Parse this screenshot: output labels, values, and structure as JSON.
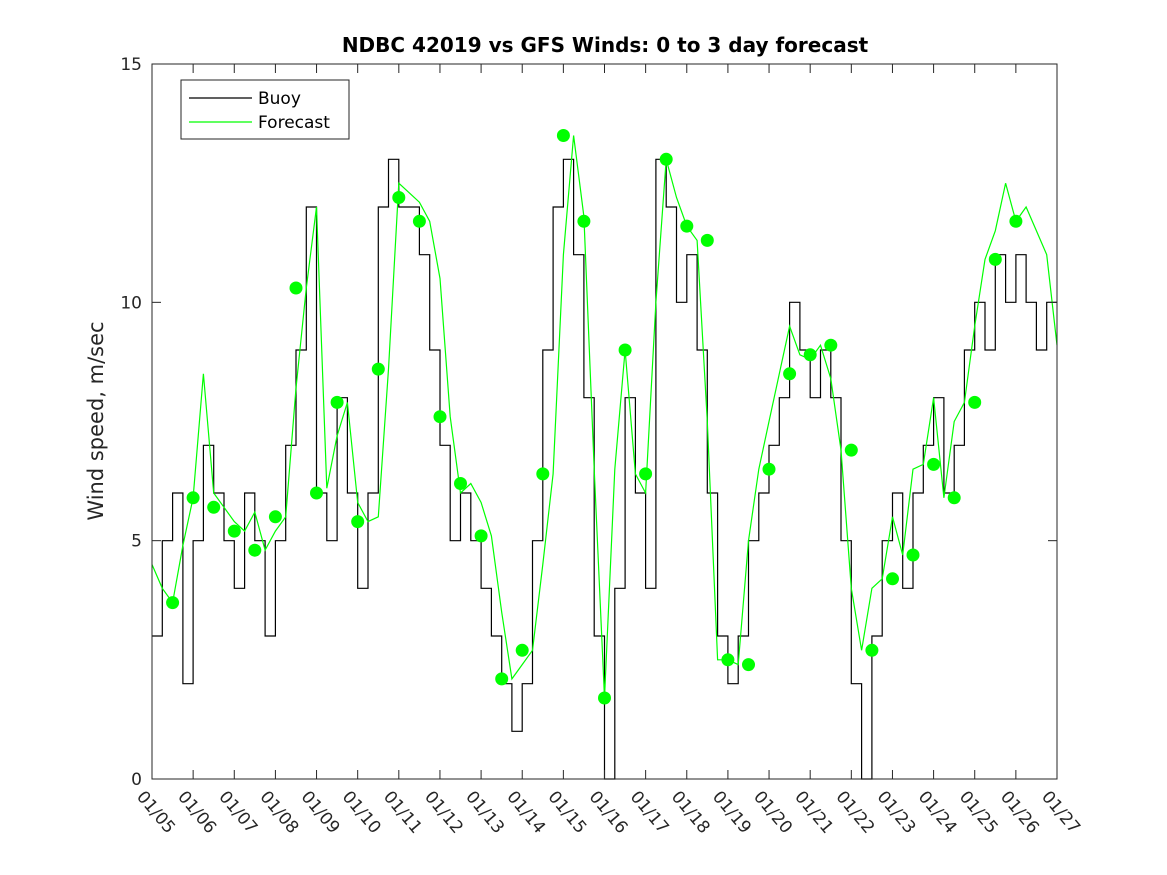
{
  "chart_data": {
    "type": "line",
    "title": "NDBC 42019 vs GFS Winds: 0 to 3 day forecast",
    "xlabel": "",
    "ylabel": "Wind speed, m/sec",
    "xlim": [
      "01/05",
      "01/27"
    ],
    "ylim": [
      0,
      15
    ],
    "x_tick_labels": [
      "01/05",
      "01/06",
      "01/07",
      "01/08",
      "01/09",
      "01/10",
      "01/11",
      "01/12",
      "01/13",
      "01/14",
      "01/15",
      "01/16",
      "01/17",
      "01/18",
      "01/19",
      "01/20",
      "01/21",
      "01/22",
      "01/23",
      "01/24",
      "01/25",
      "01/26",
      "01/27"
    ],
    "y_ticks": [
      0,
      5,
      10,
      15
    ],
    "legend": {
      "position": "top-left",
      "entries": [
        "Buoy",
        "Forecast"
      ]
    },
    "grid": false,
    "colors": {
      "buoy": "#000000",
      "forecast": "#00ff00"
    },
    "series": [
      {
        "name": "Buoy",
        "style": "step",
        "x": [
          "01/05 00:00",
          "01/05 06:00",
          "01/05 12:00",
          "01/05 18:00",
          "01/06 00:00",
          "01/06 06:00",
          "01/06 12:00",
          "01/06 18:00",
          "01/07 00:00",
          "01/07 06:00",
          "01/07 12:00",
          "01/07 18:00",
          "01/08 00:00",
          "01/08 06:00",
          "01/08 12:00",
          "01/08 18:00",
          "01/09 00:00",
          "01/09 06:00",
          "01/09 12:00",
          "01/09 18:00",
          "01/10 00:00",
          "01/10 06:00",
          "01/10 12:00",
          "01/10 18:00",
          "01/11 00:00",
          "01/11 06:00",
          "01/11 12:00",
          "01/11 18:00",
          "01/12 00:00",
          "01/12 06:00",
          "01/12 12:00",
          "01/12 18:00",
          "01/13 00:00",
          "01/13 06:00",
          "01/13 12:00",
          "01/13 18:00",
          "01/14 00:00",
          "01/14 06:00",
          "01/14 12:00",
          "01/14 18:00",
          "01/15 00:00",
          "01/15 06:00",
          "01/15 12:00",
          "01/15 18:00",
          "01/16 00:00",
          "01/16 06:00",
          "01/16 12:00",
          "01/16 18:00",
          "01/17 00:00",
          "01/17 06:00",
          "01/17 12:00",
          "01/17 18:00",
          "01/18 00:00",
          "01/18 06:00",
          "01/18 12:00",
          "01/18 18:00",
          "01/19 00:00",
          "01/19 06:00",
          "01/19 12:00",
          "01/19 18:00",
          "01/20 00:00",
          "01/20 06:00",
          "01/20 12:00",
          "01/20 18:00",
          "01/21 00:00",
          "01/21 06:00",
          "01/21 12:00",
          "01/21 18:00",
          "01/22 00:00",
          "01/22 06:00",
          "01/22 12:00",
          "01/22 18:00",
          "01/23 00:00",
          "01/23 06:00",
          "01/23 12:00",
          "01/23 18:00",
          "01/24 00:00",
          "01/24 06:00",
          "01/24 12:00",
          "01/24 18:00",
          "01/25 00:00",
          "01/25 06:00",
          "01/25 12:00",
          "01/25 18:00",
          "01/26 00:00",
          "01/26 06:00",
          "01/26 12:00",
          "01/26 18:00",
          "01/27 00:00"
        ],
        "y": [
          3,
          5,
          6,
          2,
          5,
          7,
          6,
          5,
          4,
          6,
          5,
          3,
          5,
          7,
          9,
          12,
          6,
          5,
          8,
          6,
          4,
          6,
          12,
          13,
          12,
          12,
          11,
          9,
          7,
          5,
          6,
          5,
          4,
          3,
          2,
          1,
          2,
          5,
          9,
          12,
          13,
          11,
          8,
          3,
          0,
          4,
          8,
          6,
          4,
          13,
          12,
          10,
          11,
          9,
          6,
          3,
          2,
          3,
          5,
          6,
          7,
          8,
          10,
          9,
          8,
          9,
          8,
          5,
          2,
          0,
          3,
          5,
          6,
          4,
          6,
          7,
          8,
          6,
          7,
          9,
          10,
          9,
          11,
          10,
          11,
          10,
          9,
          10,
          10
        ]
      },
      {
        "name": "Forecast",
        "style": "line",
        "x": [
          "01/05 00:00",
          "01/05 06:00",
          "01/05 12:00",
          "01/05 18:00",
          "01/06 00:00",
          "01/06 06:00",
          "01/06 12:00",
          "01/06 18:00",
          "01/07 00:00",
          "01/07 06:00",
          "01/07 12:00",
          "01/07 18:00",
          "01/08 00:00",
          "01/08 06:00",
          "01/08 12:00",
          "01/08 18:00",
          "01/09 00:00",
          "01/09 06:00",
          "01/09 12:00",
          "01/09 18:00",
          "01/10 00:00",
          "01/10 06:00",
          "01/10 12:00",
          "01/10 18:00",
          "01/11 00:00",
          "01/11 06:00",
          "01/11 12:00",
          "01/11 18:00",
          "01/12 00:00",
          "01/12 06:00",
          "01/12 12:00",
          "01/12 18:00",
          "01/13 00:00",
          "01/13 06:00",
          "01/13 12:00",
          "01/13 18:00",
          "01/14 00:00",
          "01/14 06:00",
          "01/14 12:00",
          "01/14 18:00",
          "01/15 00:00",
          "01/15 06:00",
          "01/15 12:00",
          "01/15 18:00",
          "01/16 00:00",
          "01/16 06:00",
          "01/16 12:00",
          "01/16 18:00",
          "01/17 00:00",
          "01/17 06:00",
          "01/17 12:00",
          "01/17 18:00",
          "01/18 00:00",
          "01/18 06:00",
          "01/18 12:00",
          "01/18 18:00",
          "01/19 00:00",
          "01/19 06:00",
          "01/19 12:00",
          "01/19 18:00",
          "01/20 00:00",
          "01/20 06:00",
          "01/20 12:00",
          "01/20 18:00",
          "01/21 00:00",
          "01/21 06:00",
          "01/21 12:00",
          "01/21 18:00",
          "01/22 00:00",
          "01/22 06:00",
          "01/22 12:00",
          "01/22 18:00",
          "01/23 00:00",
          "01/23 06:00",
          "01/23 12:00",
          "01/23 18:00",
          "01/24 00:00",
          "01/24 06:00",
          "01/24 12:00",
          "01/24 18:00",
          "01/25 00:00",
          "01/25 06:00",
          "01/25 12:00",
          "01/25 18:00",
          "01/26 00:00",
          "01/26 06:00",
          "01/26 12:00",
          "01/26 18:00",
          "01/27 00:00"
        ],
        "y": [
          4.5,
          4.0,
          3.7,
          4.9,
          5.9,
          8.5,
          6.0,
          5.7,
          5.4,
          5.2,
          5.6,
          4.8,
          5.2,
          5.5,
          8.2,
          10.3,
          12.0,
          6.1,
          7.2,
          7.9,
          5.8,
          5.4,
          5.5,
          8.6,
          12.5,
          12.3,
          12.1,
          11.7,
          10.5,
          7.6,
          6.0,
          6.2,
          5.8,
          5.1,
          3.5,
          2.1,
          2.4,
          2.7,
          4.5,
          6.4,
          11.0,
          13.5,
          11.8,
          6.5,
          1.7,
          6.5,
          9.0,
          6.4,
          6.0,
          10.0,
          13.0,
          12.2,
          11.6,
          11.3,
          7.5,
          2.5,
          2.5,
          2.4,
          5.0,
          6.5,
          7.5,
          8.5,
          9.5,
          8.9,
          8.8,
          9.1,
          8.4,
          6.9,
          4.0,
          2.7,
          4.0,
          4.2,
          5.5,
          4.7,
          6.5,
          6.6,
          8.0,
          5.9,
          7.5,
          7.9,
          9.5,
          10.9,
          11.5,
          12.5,
          11.7,
          12.0,
          11.5,
          11.0,
          9.1
        ]
      },
      {
        "name": "Forecast markers",
        "style": "markers",
        "x": [
          "01/05 12:00",
          "01/06 00:00",
          "01/06 12:00",
          "01/07 00:00",
          "01/07 12:00",
          "01/08 00:00",
          "01/08 12:00",
          "01/09 00:00",
          "01/09 12:00",
          "01/10 00:00",
          "01/10 12:00",
          "01/11 00:00",
          "01/11 12:00",
          "01/12 00:00",
          "01/12 12:00",
          "01/13 00:00",
          "01/13 12:00",
          "01/14 00:00",
          "01/14 12:00",
          "01/15 00:00",
          "01/15 12:00",
          "01/16 00:00",
          "01/16 12:00",
          "01/17 00:00",
          "01/17 12:00",
          "01/18 00:00",
          "01/18 12:00",
          "01/19 00:00",
          "01/19 12:00",
          "01/20 00:00",
          "01/20 12:00",
          "01/21 00:00",
          "01/21 12:00",
          "01/22 00:00",
          "01/22 12:00",
          "01/23 00:00",
          "01/23 12:00",
          "01/24 00:00",
          "01/24 12:00",
          "01/25 00:00",
          "01/25 12:00",
          "01/26 00:00"
        ],
        "y": [
          3.7,
          5.9,
          5.7,
          5.2,
          4.8,
          5.5,
          10.3,
          6.0,
          7.9,
          5.4,
          8.6,
          12.2,
          11.7,
          7.6,
          6.2,
          5.1,
          2.1,
          2.7,
          6.4,
          13.5,
          11.7,
          1.7,
          9.0,
          6.4,
          13.0,
          11.6,
          11.3,
          2.5,
          2.4,
          6.5,
          8.5,
          8.9,
          9.1,
          6.9,
          2.7,
          4.2,
          4.7,
          6.6,
          5.9,
          7.9,
          10.9,
          11.7
        ]
      }
    ]
  }
}
